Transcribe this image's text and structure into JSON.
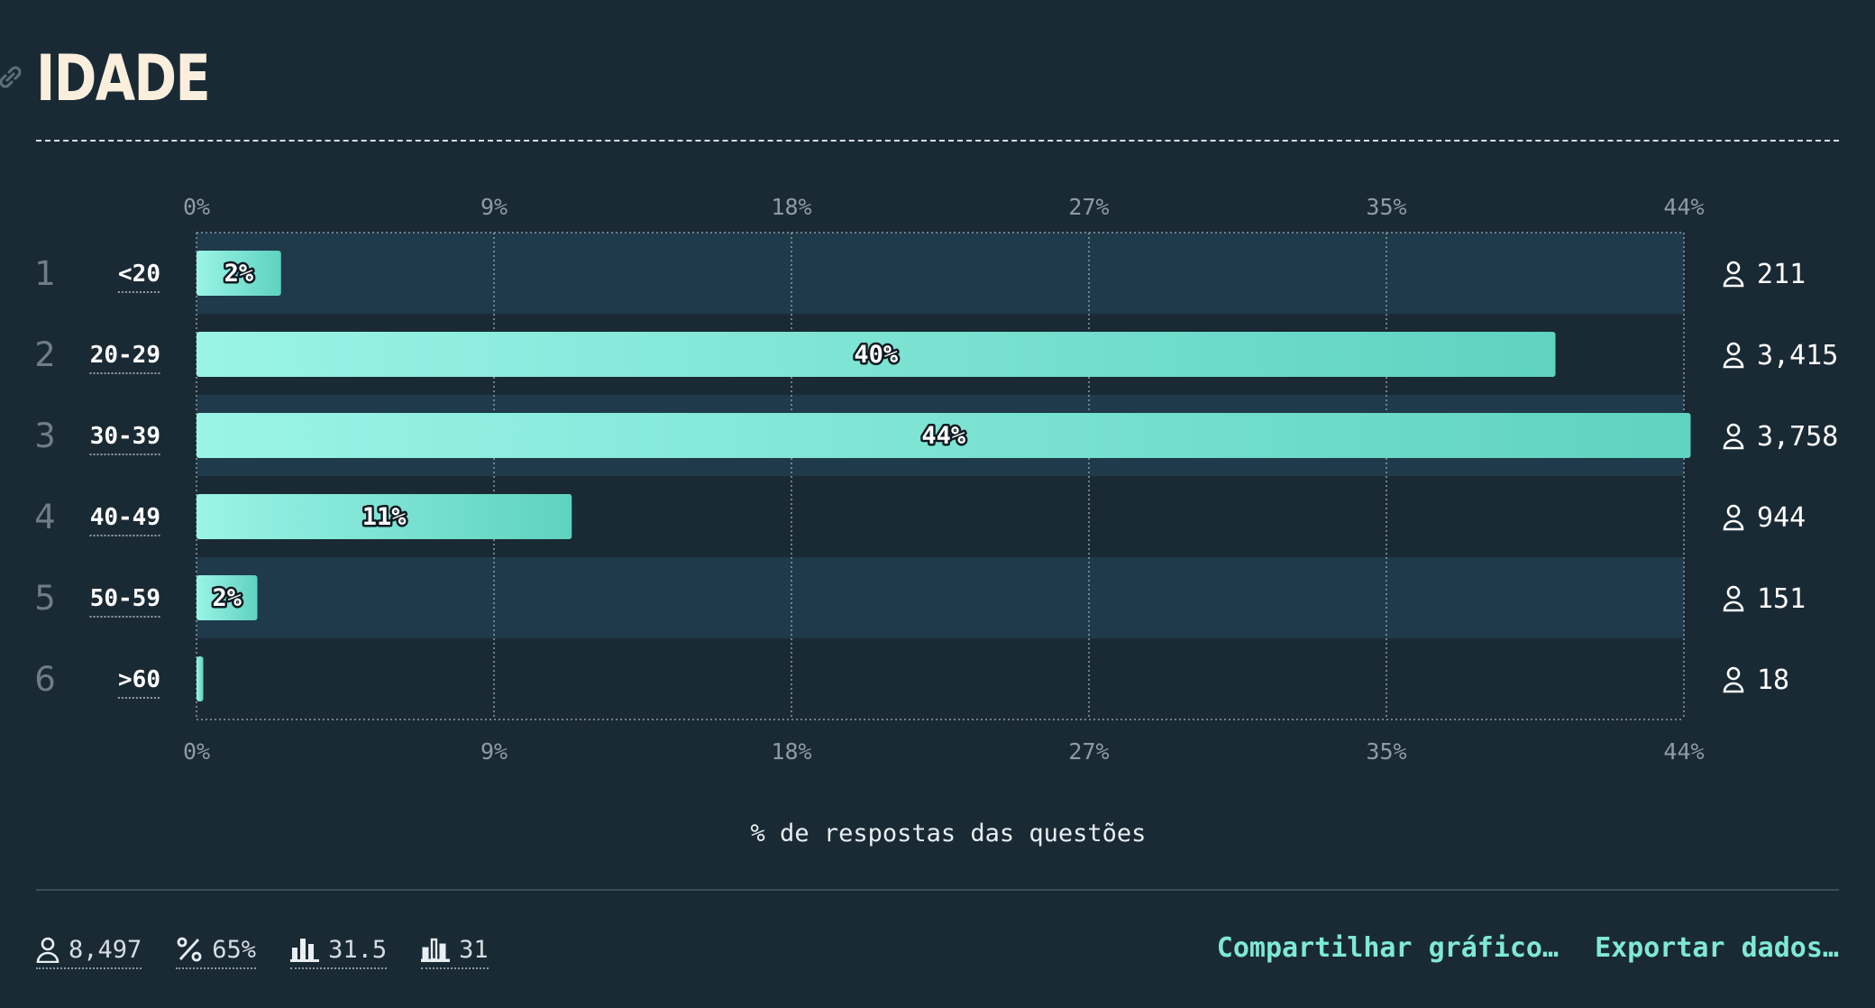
{
  "header": {
    "title": "IDADE"
  },
  "chart_data": {
    "type": "bar",
    "orientation": "horizontal",
    "title": "IDADE",
    "xlabel": "% de respostas das questões",
    "xlim": [
      0,
      44
    ],
    "ticks": [
      "0%",
      "9%",
      "18%",
      "27%",
      "35%",
      "44%"
    ],
    "grid": true,
    "rows": [
      {
        "rank": "1",
        "category": "<20",
        "value": 2.5,
        "label": "2%",
        "count": "211"
      },
      {
        "rank": "2",
        "category": "20-29",
        "value": 40.2,
        "label": "40%",
        "count": "3,415"
      },
      {
        "rank": "3",
        "category": "30-39",
        "value": 44.2,
        "label": "44%",
        "count": "3,758"
      },
      {
        "rank": "4",
        "category": "40-49",
        "value": 11.1,
        "label": "11%",
        "count": "944"
      },
      {
        "rank": "5",
        "category": "50-59",
        "value": 1.8,
        "label": "2%",
        "count": "151"
      },
      {
        "rank": "6",
        "category": ">60",
        "value": 0.2,
        "label": "",
        "count": "18"
      }
    ]
  },
  "footer": {
    "respondents": "8,497",
    "percent": "65%",
    "mean": "31.5",
    "median": "31",
    "share_label": "Compartilhar gráfico…",
    "export_label": "Exportar dados…"
  },
  "colors": {
    "background": "#1a2a35",
    "band": "#1f3a4a",
    "bar_start": "#9af4e6",
    "bar_end": "#5fd2c0",
    "accent": "#7fe8d6",
    "title": "#faeedd"
  }
}
